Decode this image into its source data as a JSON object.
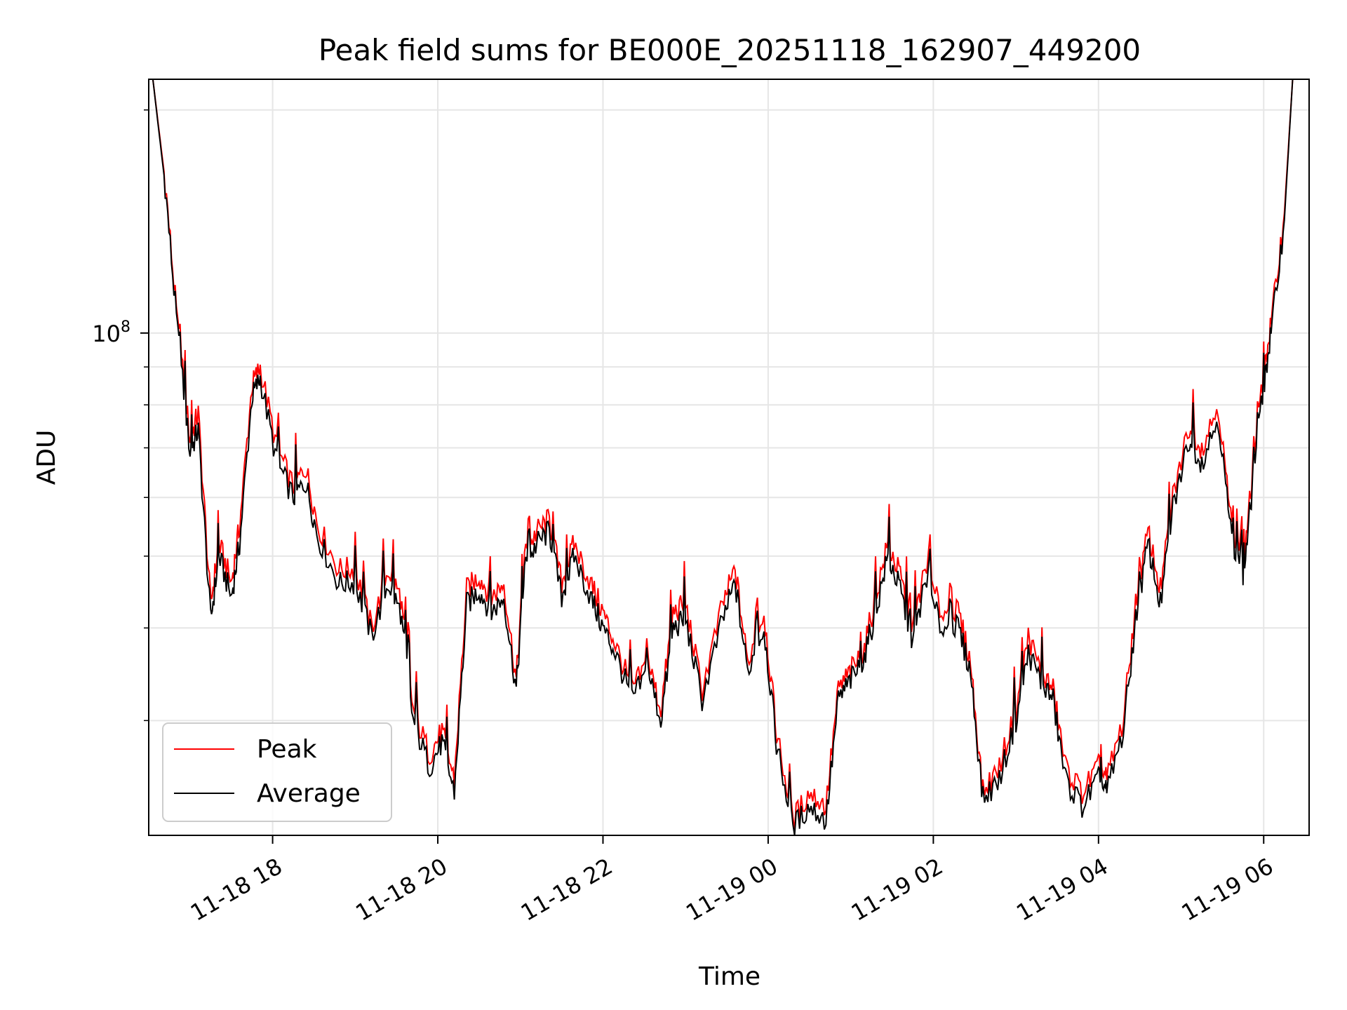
{
  "chart_data": {
    "type": "line",
    "title": "Peak field sums for BE000E_20251118_162907_449200",
    "xlabel": "Time",
    "ylabel": "ADU",
    "yscale": "log",
    "ylim": [
      21000000,
      220000000
    ],
    "xlim_hours": [
      16.5,
      30.55
    ],
    "grid": true,
    "legend_location": "lower-left",
    "x_ticks": [
      {
        "hour": 18,
        "label": "11-18 18"
      },
      {
        "hour": 20,
        "label": "11-18 20"
      },
      {
        "hour": 22,
        "label": "11-18 22"
      },
      {
        "hour": 24,
        "label": "11-19 00"
      },
      {
        "hour": 26,
        "label": "11-19 02"
      },
      {
        "hour": 28,
        "label": "11-19 04"
      },
      {
        "hour": 30,
        "label": "11-19 06"
      }
    ],
    "y_major_tick": {
      "value": 100000000,
      "base": "10",
      "exp": "8"
    },
    "y_minor_ticks": [
      30000000,
      40000000,
      50000000,
      60000000,
      70000000,
      80000000,
      90000000,
      200000000
    ],
    "x_hours": [
      16.55,
      16.7,
      16.85,
      17.0,
      17.1,
      17.25,
      17.35,
      17.5,
      17.6,
      17.75,
      17.85,
      18.05,
      18.25,
      18.4,
      18.55,
      18.8,
      19.0,
      19.2,
      19.4,
      19.55,
      19.7,
      19.9,
      20.05,
      20.2,
      20.35,
      20.5,
      20.65,
      20.8,
      20.95,
      21.05,
      21.2,
      21.35,
      21.5,
      21.65,
      21.85,
      22.0,
      22.15,
      22.35,
      22.55,
      22.7,
      22.85,
      23.0,
      23.2,
      23.45,
      23.6,
      23.75,
      23.95,
      24.1,
      24.3,
      24.5,
      24.7,
      24.85,
      25.0,
      25.15,
      25.3,
      25.45,
      25.6,
      25.75,
      25.9,
      26.1,
      26.3,
      26.45,
      26.6,
      26.8,
      27.0,
      27.15,
      27.3,
      27.45,
      27.6,
      27.8,
      28.0,
      28.1,
      28.3,
      28.45,
      28.6,
      28.75,
      28.9,
      29.1,
      29.25,
      29.45,
      29.6,
      29.75,
      29.85,
      30.0,
      30.1,
      30.25,
      30.35
    ],
    "series": [
      {
        "name": "Peak",
        "color": "#ff0000",
        "values": [
          220000000,
          160000000,
          102000000,
          72000000,
          78000000,
          43000000,
          52000000,
          46000000,
          55000000,
          85000000,
          90000000,
          70000000,
          62000000,
          66000000,
          55000000,
          48000000,
          48000000,
          40000000,
          48000000,
          44000000,
          31000000,
          27000000,
          29000000,
          25000000,
          45000000,
          47000000,
          44000000,
          46000000,
          34000000,
          50000000,
          54000000,
          56000000,
          46000000,
          52000000,
          46000000,
          42000000,
          38000000,
          33000000,
          36000000,
          31000000,
          42000000,
          43000000,
          33000000,
          43000000,
          48000000,
          36000000,
          42000000,
          29000000,
          22000000,
          24000000,
          23000000,
          33000000,
          35000000,
          37000000,
          44000000,
          52000000,
          47000000,
          40000000,
          48000000,
          42000000,
          42000000,
          36000000,
          24000000,
          26000000,
          31000000,
          39000000,
          35000000,
          33000000,
          26000000,
          24000000,
          26000000,
          25000000,
          30000000,
          43000000,
          54000000,
          45000000,
          60000000,
          75000000,
          70000000,
          80000000,
          56000000,
          48000000,
          62000000,
          88000000,
          105000000,
          145000000,
          220000000
        ]
      },
      {
        "name": "Average",
        "color": "#000000",
        "values": [
          220000000,
          158000000,
          100000000,
          69000000,
          74000000,
          41000000,
          50000000,
          44000000,
          52000000,
          82000000,
          87000000,
          67000000,
          60000000,
          63000000,
          53000000,
          46000000,
          46000000,
          39000000,
          46000000,
          42000000,
          30000000,
          26000000,
          28000000,
          24000000,
          43000000,
          45000000,
          42000000,
          44000000,
          33000000,
          48000000,
          52000000,
          54000000,
          44000000,
          50000000,
          44000000,
          40000000,
          37000000,
          32000000,
          35000000,
          30000000,
          40000000,
          41000000,
          32000000,
          41000000,
          46000000,
          35000000,
          40000000,
          28000000,
          21500000,
          23000000,
          22000000,
          32000000,
          34000000,
          36000000,
          42000000,
          50000000,
          45000000,
          38000000,
          46000000,
          40000000,
          40000000,
          35000000,
          23500000,
          25000000,
          30000000,
          37000000,
          34000000,
          32000000,
          25000000,
          23000000,
          25000000,
          24000000,
          29000000,
          41000000,
          52000000,
          43000000,
          58000000,
          72000000,
          67000000,
          77000000,
          54000000,
          46000000,
          60000000,
          85000000,
          102000000,
          142000000,
          220000000
        ]
      }
    ]
  }
}
